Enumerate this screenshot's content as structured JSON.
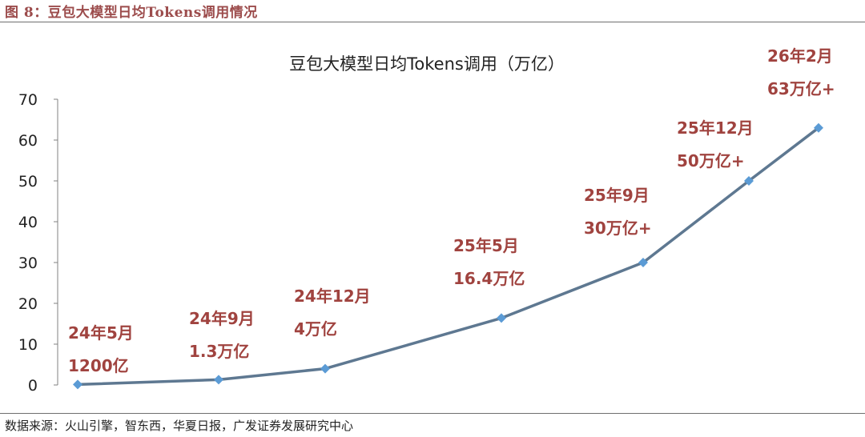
{
  "figure": {
    "title": "图 8：豆包大模型日均Tokens调用情况",
    "source": "数据来源：火山引擎，智东西，华夏日报，广发证券发展研究中心"
  },
  "colors": {
    "figure_title": "#9c4c4c",
    "line": "#5e7891",
    "marker": "#5b9bd5",
    "annotation": "#a0433f",
    "axis": "#808080",
    "text": "#222222"
  },
  "chart_data": {
    "type": "line",
    "title": "豆包大模型日均Tokens调用（万亿）",
    "xlabel": "",
    "ylabel": "",
    "ylim": [
      0,
      70
    ],
    "yticks": [
      0,
      10,
      20,
      30,
      40,
      50,
      60,
      70
    ],
    "grid": false,
    "legend": "none",
    "x_note": "points spaced in time from 2024-05 to 2026-02; x axis has no labels",
    "series": [
      {
        "points": [
          {
            "date": "24年5月",
            "value": 0.12,
            "label_date": "24年5月",
            "label_value": "1200亿"
          },
          {
            "date": "24年9月",
            "value": 1.3,
            "label_date": "24年9月",
            "label_value": "1.3万亿"
          },
          {
            "date": "24年12月",
            "value": 4,
            "label_date": "24年12月",
            "label_value": "4万亿"
          },
          {
            "date": "25年5月",
            "value": 16.4,
            "label_date": "25年5月",
            "label_value": "16.4万亿"
          },
          {
            "date": "25年9月",
            "value": 30,
            "label_date": "25年9月",
            "label_value": "30万亿+"
          },
          {
            "date": "25年12月",
            "value": 50,
            "label_date": "25年12月",
            "label_value": "50万亿+"
          },
          {
            "date": "26年2月",
            "value": 63,
            "label_date": "26年2月",
            "label_value": "63万亿+"
          }
        ]
      }
    ]
  }
}
